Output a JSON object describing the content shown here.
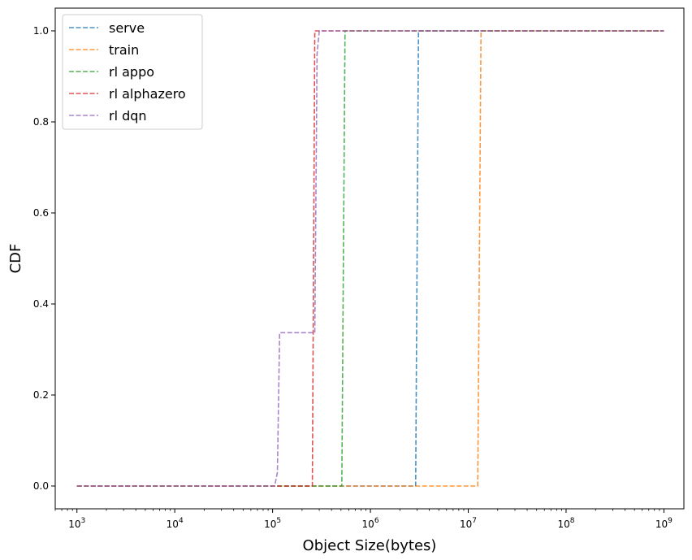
{
  "chart_data": {
    "type": "line",
    "title": "",
    "xlabel": "Object Size(bytes)",
    "ylabel": "CDF",
    "xscale": "log",
    "xlim": [
      600,
      1600000000
    ],
    "ylim": [
      -0.05,
      1.05
    ],
    "x_ticks": [
      {
        "value": 1000,
        "base": "10",
        "exp": "3"
      },
      {
        "value": 10000,
        "base": "10",
        "exp": "4"
      },
      {
        "value": 100000,
        "base": "10",
        "exp": "5"
      },
      {
        "value": 1000000,
        "base": "10",
        "exp": "6"
      },
      {
        "value": 10000000,
        "base": "10",
        "exp": "7"
      },
      {
        "value": 100000000,
        "base": "10",
        "exp": "8"
      },
      {
        "value": 1000000000,
        "base": "10",
        "exp": "9"
      }
    ],
    "y_ticks": [
      {
        "value": 0.0,
        "label": "0.0"
      },
      {
        "value": 0.2,
        "label": "0.2"
      },
      {
        "value": 0.4,
        "label": "0.4"
      },
      {
        "value": 0.6,
        "label": "0.6"
      },
      {
        "value": 0.8,
        "label": "0.8"
      },
      {
        "value": 1.0,
        "label": "1.0"
      }
    ],
    "grid": false,
    "legend_position": "upper-left",
    "series": [
      {
        "name": "serve",
        "color": "#1f77b4",
        "points": [
          [
            1000,
            0.0
          ],
          [
            2900000,
            0.0
          ],
          [
            3100000,
            1.0
          ],
          [
            1000000000,
            1.0
          ]
        ]
      },
      {
        "name": "train",
        "color": "#ff7f0e",
        "points": [
          [
            1000,
            0.0
          ],
          [
            12500000,
            0.0
          ],
          [
            13500000,
            1.0
          ],
          [
            1000000000,
            1.0
          ]
        ]
      },
      {
        "name": "rl appo",
        "color": "#2ca02c",
        "points": [
          [
            1000,
            0.0
          ],
          [
            510000,
            0.0
          ],
          [
            550000,
            1.0
          ],
          [
            1000000000,
            1.0
          ]
        ]
      },
      {
        "name": "rl alphazero",
        "color": "#d62728",
        "points": [
          [
            1000,
            0.0
          ],
          [
            255000,
            0.0
          ],
          [
            270000,
            1.0
          ],
          [
            1000000000,
            1.0
          ]
        ]
      },
      {
        "name": "rl dqn",
        "color": "#9467bd",
        "points": [
          [
            1000,
            0.0
          ],
          [
            105000,
            0.0
          ],
          [
            112000,
            0.03
          ],
          [
            118000,
            0.337
          ],
          [
            270000,
            0.337
          ],
          [
            285000,
            0.95
          ],
          [
            300000,
            1.0
          ],
          [
            1000000000,
            1.0
          ]
        ]
      }
    ]
  }
}
